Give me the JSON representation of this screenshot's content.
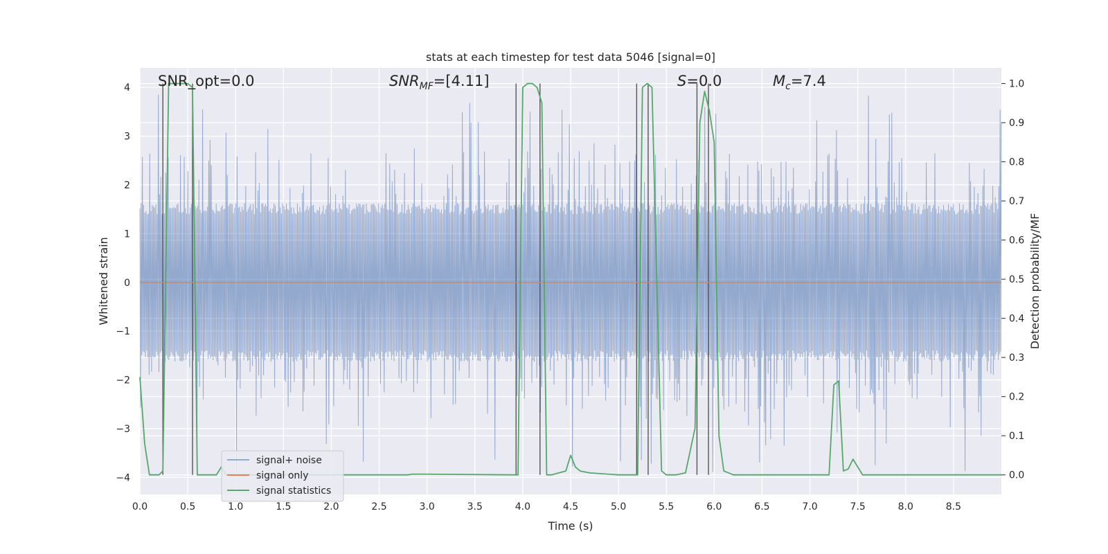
{
  "chart_data": {
    "type": "line",
    "title": "stats at each timestep for test data 5046 [signal=0]",
    "xlabel": "Time (s)",
    "ylabel": "Whitened strain",
    "ylabel_right": "Detection probability/MF",
    "xlim": [
      0.0,
      9.0
    ],
    "ylim": [
      -4.35,
      4.4
    ],
    "ylim_right": [
      -0.05,
      1.04
    ],
    "xticks": [
      "0.0",
      "0.5",
      "1.0",
      "1.5",
      "2.0",
      "2.5",
      "3.0",
      "3.5",
      "4.0",
      "4.5",
      "5.0",
      "5.5",
      "6.0",
      "6.5",
      "7.0",
      "7.5",
      "8.0",
      "8.5"
    ],
    "xtick_values": [
      0.0,
      0.5,
      1.0,
      1.5,
      2.0,
      2.5,
      3.0,
      3.5,
      4.0,
      4.5,
      5.0,
      5.5,
      6.0,
      6.5,
      7.0,
      7.5,
      8.0,
      8.5
    ],
    "yticks": [
      "4",
      "3",
      "2",
      "1",
      "0",
      "−1",
      "−2",
      "−3",
      "−4"
    ],
    "ytick_values": [
      4,
      3,
      2,
      1,
      0,
      -1,
      -2,
      -3,
      -4
    ],
    "yticks_right": [
      "1.0",
      "0.9",
      "0.8",
      "0.7",
      "0.6",
      "0.5",
      "0.4",
      "0.3",
      "0.2",
      "0.1",
      "0.0"
    ],
    "ytick_right_values": [
      1.0,
      0.9,
      0.8,
      0.7,
      0.6,
      0.5,
      0.4,
      0.3,
      0.2,
      0.1,
      0.0
    ],
    "annotations": {
      "snr_opt": "SNR_opt=0.0",
      "snr_mf_prefix": "SNR",
      "snr_mf_sub": "MF",
      "snr_mf_value": "=[4.11]",
      "s_name": "S",
      "s_value": "=0.0",
      "mc_name": "M",
      "mc_sub": "c",
      "mc_value": "=7.4"
    },
    "legend": {
      "position": "lower-left",
      "entries": [
        "signal+ noise",
        "signal only",
        "signal statistics"
      ]
    },
    "series": [
      {
        "name": "signal+ noise",
        "color": "#4c72b0",
        "envelope_amplitude": 1.55,
        "peak_min": -3.7,
        "peak_max": 3.9
      },
      {
        "name": "signal only",
        "color": "#dd8452",
        "values_constant": 0.0
      },
      {
        "name": "signal statistics",
        "color": "#55a868",
        "x": [
          0.0,
          0.05,
          0.1,
          0.2,
          0.24,
          0.3,
          0.35,
          0.4,
          0.5,
          0.55,
          0.6,
          0.65,
          0.8,
          0.85,
          0.9,
          1.0,
          2.0,
          2.8,
          2.85,
          3.9,
          3.95,
          4.0,
          4.05,
          4.1,
          4.15,
          4.2,
          4.25,
          4.3,
          4.45,
          4.5,
          4.55,
          4.6,
          4.7,
          5.0,
          5.2,
          5.25,
          5.3,
          5.35,
          5.45,
          5.5,
          5.6,
          5.7,
          5.8,
          5.85,
          5.9,
          5.95,
          6.0,
          6.05,
          6.1,
          6.2,
          7.2,
          7.25,
          7.3,
          7.35,
          7.4,
          7.45,
          7.5,
          7.55,
          7.6,
          8.5,
          9.0
        ],
        "values": [
          0.25,
          0.08,
          0.0,
          0.0,
          0.01,
          1.0,
          1.0,
          1.0,
          1.0,
          0.99,
          0.0,
          0.0,
          0.0,
          0.02,
          0.0,
          0.0,
          0.0,
          0.0,
          0.002,
          0.0,
          0.0,
          0.99,
          1.0,
          1.0,
          0.99,
          0.95,
          0.0,
          0.0,
          0.01,
          0.05,
          0.02,
          0.01,
          0.005,
          0.0,
          0.0,
          0.99,
          1.0,
          0.99,
          0.01,
          0.0,
          0.0,
          0.005,
          0.12,
          0.9,
          0.98,
          0.93,
          0.85,
          0.1,
          0.01,
          0.0,
          0.0,
          0.23,
          0.24,
          0.01,
          0.015,
          0.04,
          0.02,
          0.0,
          0.0,
          0.0,
          0.0
        ]
      }
    ],
    "vertical_markers": [
      0.24,
      0.55,
      3.93,
      4.18,
      5.19,
      5.31,
      5.82,
      5.94
    ]
  }
}
